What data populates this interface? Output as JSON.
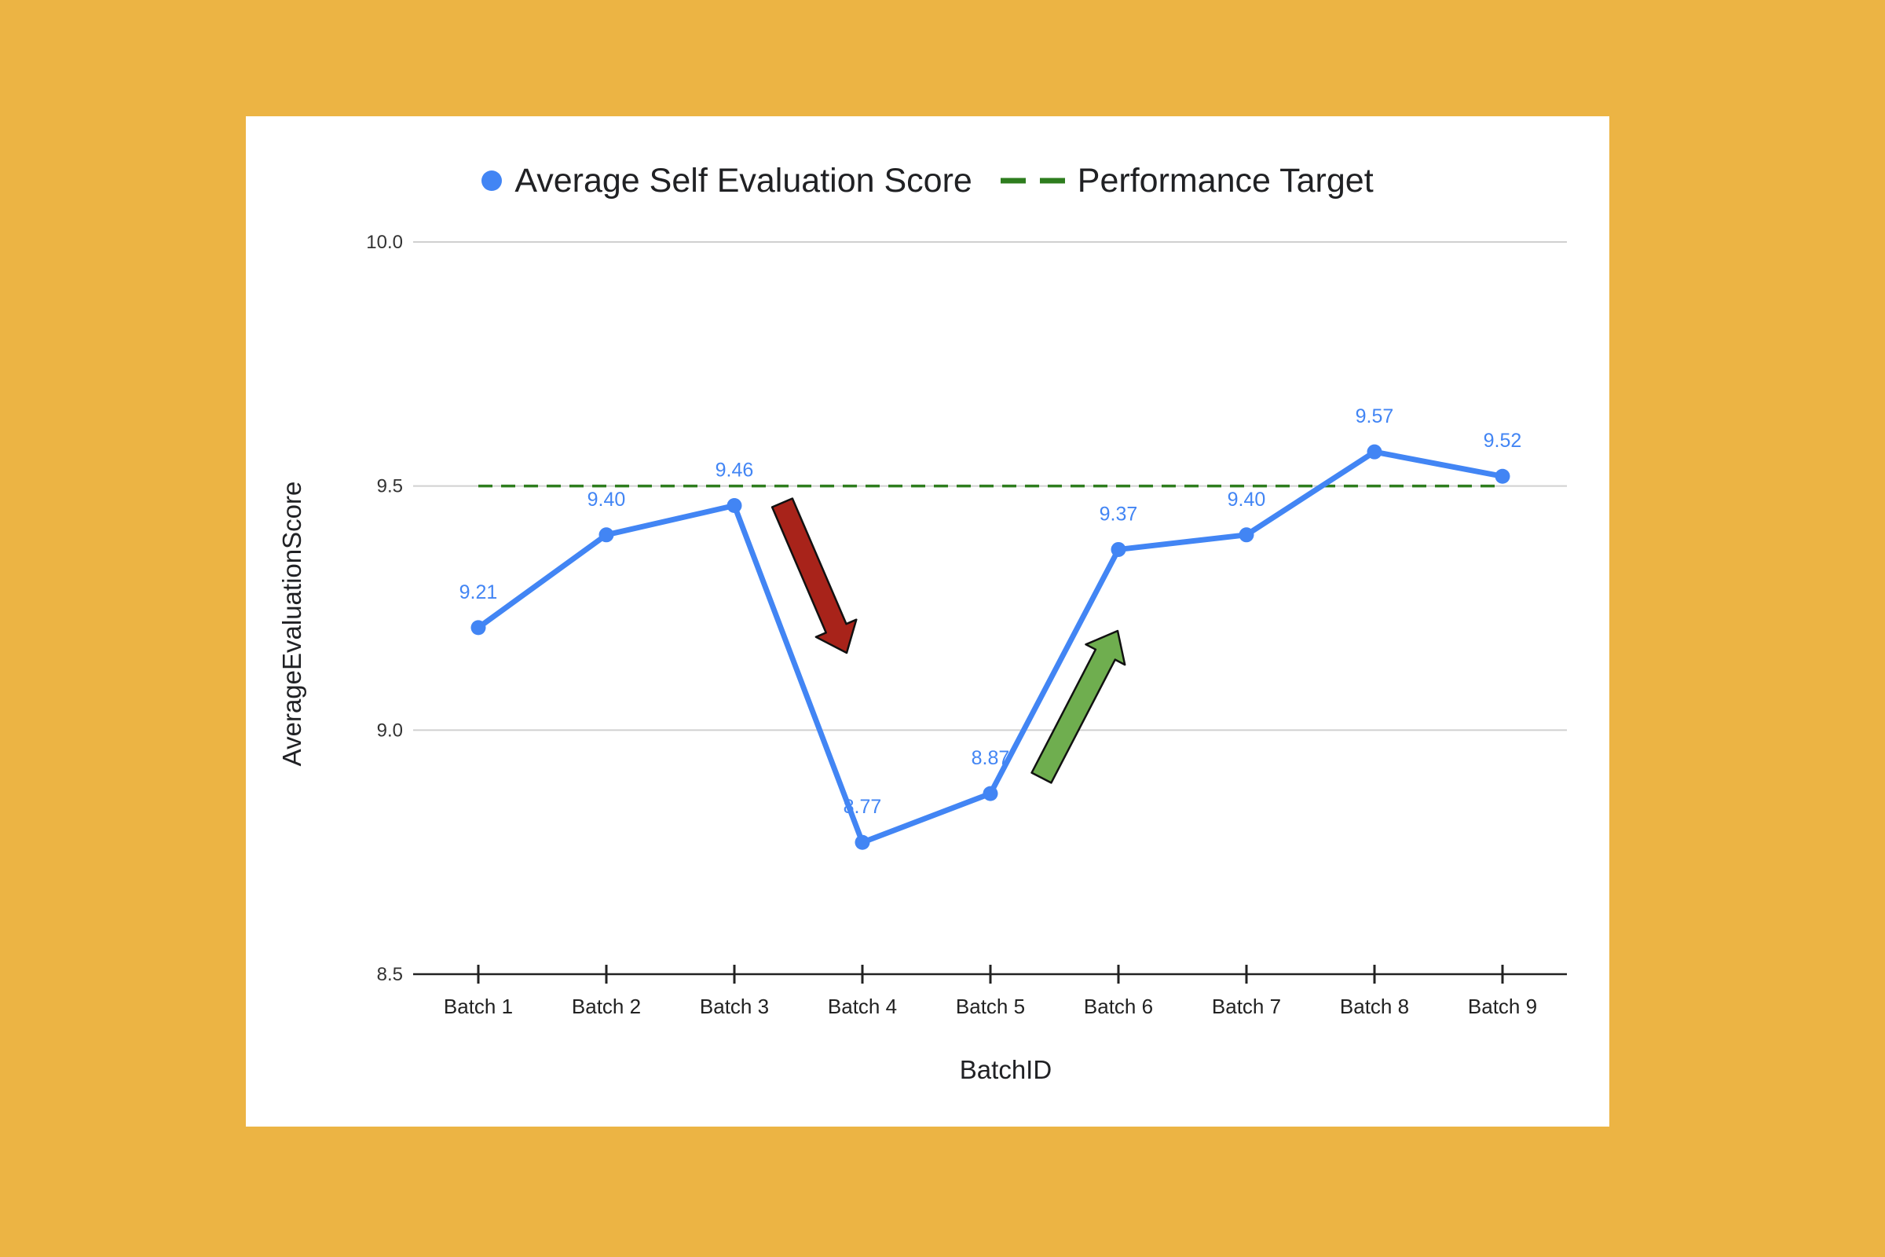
{
  "colors": {
    "backdrop": "#ECB444",
    "card": "#FFFFFF",
    "series": "#4285F4",
    "target": "#2E7D1E",
    "grid": "#D0D0D0",
    "axis": "#222222",
    "down_arrow": "#A8231A",
    "up_arrow": "#6FAE4F"
  },
  "chart_data": {
    "type": "line",
    "xlabel": "BatchID",
    "ylabel": "AverageEvaluationScore",
    "ylim": [
      8.5,
      10.0
    ],
    "yticks": [
      "10.0",
      "9.5",
      "9.0",
      "8.5"
    ],
    "grid": true,
    "legend_position": "top-center",
    "categories": [
      "Batch 1",
      "Batch 2",
      "Batch 3",
      "Batch 4",
      "Batch 5",
      "Batch 6",
      "Batch 7",
      "Batch 8",
      "Batch 9"
    ],
    "series": [
      {
        "name": "Average Self Evaluation Score",
        "values": [
          9.21,
          9.4,
          9.46,
          8.77,
          8.87,
          9.37,
          9.4,
          9.57,
          9.52
        ],
        "labels": [
          "9.21",
          "9.40",
          "9.46",
          "8.77",
          "8.87",
          "9.37",
          "9.40",
          "9.57",
          "9.52"
        ]
      }
    ],
    "reference_lines": [
      {
        "name": "Performance Target",
        "value": 9.5,
        "style": "dashed"
      }
    ],
    "annotations": [
      {
        "kind": "arrow",
        "direction": "down",
        "from_category": "Batch 3",
        "to_category": "Batch 4",
        "color": "down_arrow"
      },
      {
        "kind": "arrow",
        "direction": "up",
        "from_category": "Batch 5",
        "to_category": "Batch 6",
        "color": "up_arrow"
      }
    ]
  }
}
